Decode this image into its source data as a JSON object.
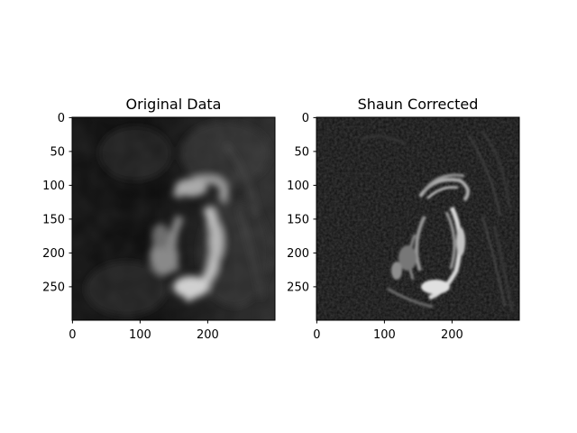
{
  "figure": {
    "panels": [
      {
        "id": "original",
        "title": "Original Data",
        "xticks": [
          "0",
          "100",
          "200"
        ],
        "yticks": [
          "0",
          "50",
          "100",
          "150",
          "200",
          "250"
        ],
        "image": {
          "description_style": "blurred grayscale solar image",
          "brightness_gain": 1.0,
          "sharpness": 0.0
        }
      },
      {
        "id": "corrected",
        "title": "Shaun Corrected",
        "xticks": [
          "0",
          "100",
          "200"
        ],
        "yticks": [
          "0",
          "50",
          "100",
          "150",
          "200",
          "250"
        ],
        "image": {
          "description_style": "sharpened grayscale solar image",
          "brightness_gain": 1.1,
          "sharpness": 1.0
        }
      }
    ],
    "colors": {
      "background": "#ffffff",
      "axis": "#000000",
      "image_dark": "#0a0a0a",
      "image_bright": "#e6e6e6"
    }
  }
}
